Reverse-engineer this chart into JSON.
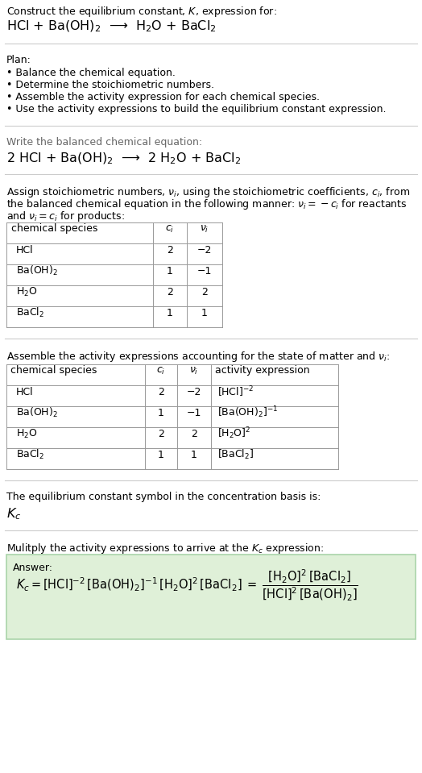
{
  "title_line1": "Construct the equilibrium constant, $K$, expression for:",
  "title_line2": "HCl + Ba(OH)$_2$  ⟶  H$_2$O + BaCl$_2$",
  "plan_header": "Plan:",
  "plan_bullets": [
    "• Balance the chemical equation.",
    "• Determine the stoichiometric numbers.",
    "• Assemble the activity expression for each chemical species.",
    "• Use the activity expressions to build the equilibrium constant expression."
  ],
  "balanced_header": "Write the balanced chemical equation:",
  "balanced_eq": "2 HCl + Ba(OH)$_2$  ⟶  2 H$_2$O + BaCl$_2$",
  "stoich_intro1": "Assign stoichiometric numbers, $\\nu_i$, using the stoichiometric coefficients, $c_i$, from",
  "stoich_intro2": "the balanced chemical equation in the following manner: $\\nu_i = -c_i$ for reactants",
  "stoich_intro3": "and $\\nu_i = c_i$ for products:",
  "table1_headers": [
    "chemical species",
    "$c_i$",
    "$\\nu_i$"
  ],
  "table1_rows": [
    [
      "HCl",
      "2",
      "−2"
    ],
    [
      "Ba(OH)$_2$",
      "1",
      "−1"
    ],
    [
      "H$_2$O",
      "2",
      "2"
    ],
    [
      "BaCl$_2$",
      "1",
      "1"
    ]
  ],
  "activity_intro": "Assemble the activity expressions accounting for the state of matter and $\\nu_i$:",
  "table2_headers": [
    "chemical species",
    "$c_i$",
    "$\\nu_i$",
    "activity expression"
  ],
  "table2_rows": [
    [
      "HCl",
      "2",
      "−2",
      "[HCl]$^{-2}$"
    ],
    [
      "Ba(OH)$_2$",
      "1",
      "−1",
      "[Ba(OH)$_2$]$^{-1}$"
    ],
    [
      "H$_2$O",
      "2",
      "2",
      "[H$_2$O]$^2$"
    ],
    [
      "BaCl$_2$",
      "1",
      "1",
      "[BaCl$_2$]"
    ]
  ],
  "kc_intro": "The equilibrium constant symbol in the concentration basis is:",
  "kc_symbol": "$K_c$",
  "multiply_intro": "Mulitply the activity expressions to arrive at the $K_c$ expression:",
  "answer_label": "Answer:",
  "bg_color": "#ffffff",
  "text_color": "#000000",
  "answer_box_bg": "#dff0d8",
  "answer_box_border": "#aad4aa",
  "font_size": 9.0,
  "title_font_size": 9.0,
  "eq_font_size": 11.5,
  "table_font_size": 9.0
}
